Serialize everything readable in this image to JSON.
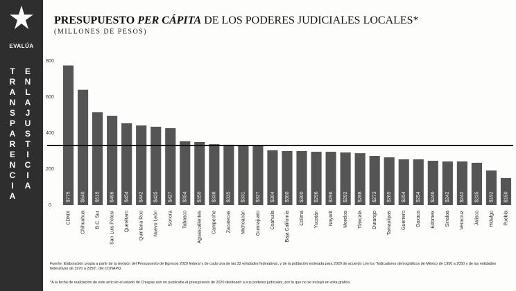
{
  "sidebar": {
    "brand": "EVALÚA",
    "words": [
      "TRANSPARENCIA",
      "ENLAJUSTICIA"
    ]
  },
  "chart_data": {
    "type": "bar",
    "title": [
      "PRESUPUESTO",
      "PER CÁPITA",
      "DE LOS PODERES JUDICIALES LOCALES*"
    ],
    "subtitle": "(MILLONES DE PESOS)",
    "categories": [
      "CDMX",
      "Chihuahua",
      "B.C. Sur",
      "San Luis Potosí",
      "Querétaro",
      "Quintana Roo",
      "Nuevo León",
      "Sonora",
      "Tabasco",
      "Aguascalientes",
      "Campeche",
      "Zacatecas",
      "Michoacán",
      "Guanajuato",
      "Coahuila",
      "Baja California",
      "Colima",
      "Yucatán",
      "Nayarit",
      "Morelos",
      "Tlaxcala",
      "Durango",
      "Tamaulipas",
      "Guerrero",
      "Oaxaca",
      "Edomex",
      "Sinaloa",
      "Veracruz",
      "Jalisco",
      "Hidalgo",
      "Puebla"
    ],
    "values": [
      775,
      640,
      515,
      496,
      454,
      442,
      435,
      427,
      354,
      350,
      338,
      335,
      331,
      327,
      304,
      300,
      300,
      296,
      296,
      292,
      288,
      273,
      265,
      254,
      254,
      246,
      242,
      242,
      235,
      192,
      150
    ],
    "value_labels": [
      "$775",
      "$640",
      "$515",
      "$496",
      "$454",
      "$442",
      "$435",
      "$427",
      "$354",
      "$350",
      "$338",
      "$335",
      "$331",
      "$327",
      "$304",
      "$300",
      "$300",
      "$296",
      "$296",
      "$292",
      "$288",
      "$273",
      "$265",
      "$254",
      "$254",
      "$246",
      "$242",
      "$242",
      "$235",
      "$192",
      "$150"
    ],
    "color": "#555555",
    "reference_line": 331,
    "ylim": [
      0,
      800
    ],
    "yticks": [
      0,
      200,
      400,
      600,
      800
    ],
    "grid": false,
    "notes": [
      "Fuente: Elaboración propia a partir de la revisión del Presupuesto de Egresos 2020 federal y de cada una de las 32 entidades federativas, y de la población estimada para 2020 de acuerdo con los \"Indicadores demográficos de México de 1950 a 2050 y de las entidades federativas de 1970 a 2050\", del CONAPO.",
      "*A la fecha de realización de este artículo el estado de Chiapas aún no publicaba el presupuesto de 2020 destinado a sus poderes judiciales, por lo que no se incluyó en esta gráfica."
    ]
  }
}
